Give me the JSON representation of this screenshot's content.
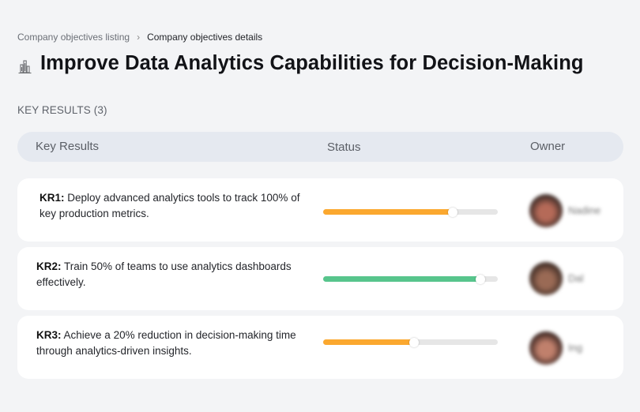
{
  "breadcrumb": {
    "items": [
      {
        "label": "Company objectives listing"
      },
      {
        "label": "Company objectives details"
      }
    ],
    "separator": "›"
  },
  "objective": {
    "icon": "building-chart-icon",
    "title": "Improve Data Analytics Capabilities for Decision-Making"
  },
  "key_results_section": {
    "label": "KEY RESULTS (3)",
    "count": 3
  },
  "table": {
    "columns": [
      "Key Results",
      "Status",
      "Owner"
    ],
    "rows": [
      {
        "id": "KR1:",
        "text": "Deploy advanced analytics tools to track 100% of key production metrics.",
        "progress_pct": 74,
        "status_color": "#fba82f",
        "owner": {
          "name": "Nadine",
          "blurred": true,
          "avatar_colors": [
            "#3a2a26",
            "#b56a58"
          ]
        }
      },
      {
        "id": "KR2:",
        "text": "Train 50% of teams to use analytics dashboards effectively.",
        "progress_pct": 90,
        "status_color": "#57c58c",
        "owner": {
          "name": "Dal",
          "blurred": true,
          "avatar_colors": [
            "#3d2b24",
            "#9a6a55"
          ]
        }
      },
      {
        "id": "KR3:",
        "text": "Achieve a 20% reduction in decision-making time through analytics-driven insights.",
        "progress_pct": 52,
        "status_color": "#fba82f",
        "owner": {
          "name": "Ing",
          "blurred": true,
          "avatar_colors": [
            "#3b2521",
            "#c0806c"
          ]
        }
      }
    ]
  },
  "colors": {
    "background": "#f3f4f6",
    "header_bg": "#e5e9f0",
    "card_bg": "#ffffff",
    "track": "#e6e6e6",
    "orange": "#fba82f",
    "green": "#57c58c"
  }
}
